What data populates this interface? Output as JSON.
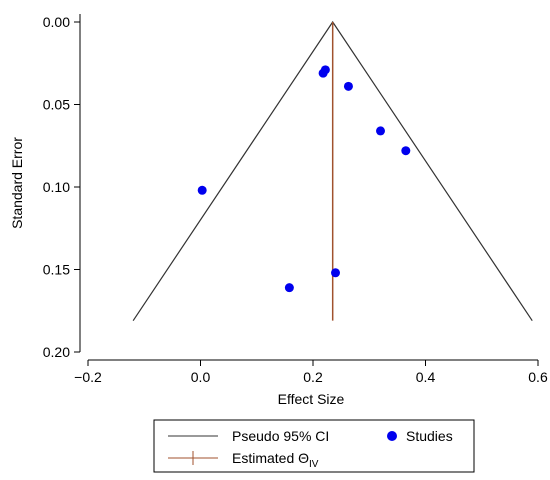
{
  "chart_data": {
    "type": "scatter",
    "title": "",
    "xlabel": "Effect Size",
    "ylabel": "Standard Error",
    "xlim": [
      -0.2,
      0.6
    ],
    "ylim": [
      0.0,
      0.2
    ],
    "y_inverted": true,
    "x_ticks": [
      {
        "value": -0.2,
        "label": "−0.2"
      },
      {
        "value": 0.0,
        "label": "0.0"
      },
      {
        "value": 0.2,
        "label": "0.2"
      },
      {
        "value": 0.4,
        "label": "0.4"
      },
      {
        "value": 0.6,
        "label": "0.6"
      }
    ],
    "y_ticks": [
      {
        "value": 0.0,
        "label": "0.00"
      },
      {
        "value": 0.05,
        "label": "0.05"
      },
      {
        "value": 0.1,
        "label": "0.10"
      },
      {
        "value": 0.15,
        "label": "0.15"
      },
      {
        "value": 0.2,
        "label": "0.20"
      }
    ],
    "estimate": 0.235,
    "funnel_max_se": 0.181,
    "series": [
      {
        "name": "Studies",
        "color": "#0000ee",
        "points": [
          {
            "x": 0.218,
            "y": 0.031
          },
          {
            "x": 0.222,
            "y": 0.029
          },
          {
            "x": 0.263,
            "y": 0.039
          },
          {
            "x": 0.32,
            "y": 0.066
          },
          {
            "x": 0.365,
            "y": 0.078
          },
          {
            "x": 0.003,
            "y": 0.102
          },
          {
            "x": 0.158,
            "y": 0.161
          },
          {
            "x": 0.24,
            "y": 0.152
          }
        ]
      }
    ],
    "lines": [
      {
        "name": "Pseudo 95% CI",
        "color": "#333333"
      },
      {
        "name": "Estimated Θ",
        "subscript": "IV",
        "color": "#a0522d"
      }
    ],
    "legend_placement": "bottom"
  }
}
